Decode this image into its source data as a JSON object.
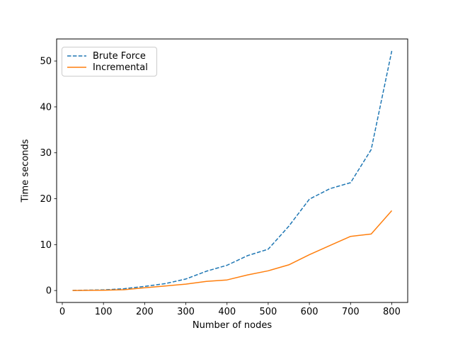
{
  "chart_data": {
    "type": "line",
    "title": "",
    "xlabel": "Number of nodes",
    "ylabel": "Time seconds",
    "x": [
      25,
      50,
      100,
      150,
      200,
      250,
      300,
      350,
      400,
      450,
      500,
      550,
      600,
      650,
      700,
      750,
      800
    ],
    "series": [
      {
        "name": "Brute Force",
        "color": "#1f77b4",
        "linestyle": "dashed",
        "values": [
          0.03,
          0.07,
          0.15,
          0.4,
          0.9,
          1.5,
          2.5,
          4.2,
          5.5,
          7.6,
          9.0,
          14.0,
          19.9,
          22.2,
          23.5,
          30.7,
          52.2
        ]
      },
      {
        "name": "Incremental",
        "color": "#ff7f0e",
        "linestyle": "solid",
        "values": [
          0.01,
          0.03,
          0.07,
          0.18,
          0.6,
          1.0,
          1.4,
          2.0,
          2.3,
          3.4,
          4.3,
          5.6,
          7.8,
          9.8,
          11.8,
          12.3,
          17.4
        ]
      }
    ],
    "xticks": [
      0,
      100,
      200,
      300,
      400,
      500,
      600,
      700,
      800
    ],
    "yticks": [
      0,
      10,
      20,
      30,
      40,
      50
    ],
    "xlim": [
      -13.75,
      838.75
    ],
    "ylim": [
      -2.6,
      54.8
    ],
    "grid": false,
    "legend_position": "upper left",
    "colors": {
      "background": "#ffffff",
      "axis": "#000000",
      "tick_label": "#000000",
      "legend_border": "#cccccc"
    }
  }
}
